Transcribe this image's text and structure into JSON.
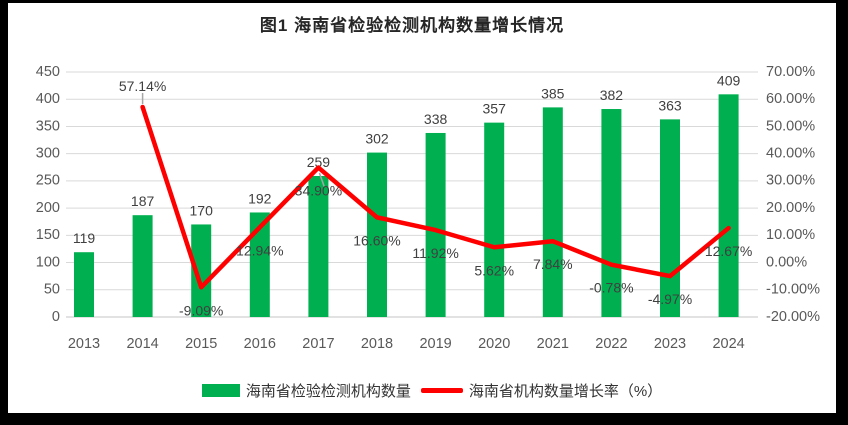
{
  "title": "图1 海南省检验检测机构数量增长情况",
  "colors": {
    "bar": "#00B050",
    "line": "#FF0000",
    "grid": "#D9D9D9",
    "baseline": "#C6C6C6",
    "axis_text": "#595959",
    "label_text": "#404040",
    "title_text": "#262626",
    "leader": "#A6A6A6",
    "background": "#FFFFFF",
    "frame": "#000000"
  },
  "legend": {
    "bar_label": "海南省检验检测机构数量",
    "line_label": "海南省机构数量增长率（%）"
  },
  "chart_data": {
    "type": "bar",
    "subtype": "combo bar+line, dual axis",
    "title": "图1 海南省检验检测机构数量增长情况",
    "categories": [
      "2013",
      "2014",
      "2015",
      "2016",
      "2017",
      "2018",
      "2019",
      "2020",
      "2021",
      "2022",
      "2023",
      "2024"
    ],
    "series": [
      {
        "name": "海南省检验检测机构数量",
        "type": "bar",
        "axis": "left",
        "color": "#00B050",
        "values": [
          119,
          187,
          170,
          192,
          259,
          302,
          338,
          357,
          385,
          382,
          363,
          409
        ],
        "labels": [
          "119",
          "187",
          "170",
          "192",
          "259",
          "302",
          "338",
          "357",
          "385",
          "382",
          "363",
          "409"
        ]
      },
      {
        "name": "海南省机构数量增长率（%）",
        "type": "line",
        "axis": "right",
        "color": "#FF0000",
        "values": [
          null,
          57.14,
          -9.09,
          12.94,
          34.9,
          16.6,
          11.92,
          5.62,
          7.84,
          -0.78,
          -4.97,
          12.67
        ],
        "labels": [
          null,
          "57.14%",
          "-9.09%",
          "12.94%",
          "34.90%",
          "16.60%",
          "11.92%",
          "5.62%",
          "7.84%",
          "-0.78%",
          "-4.97%",
          "12.67%"
        ]
      }
    ],
    "left_axis": {
      "min": 0,
      "max": 450,
      "step": 50,
      "ticks": [
        "0",
        "50",
        "100",
        "150",
        "200",
        "250",
        "300",
        "350",
        "400",
        "450"
      ]
    },
    "right_axis": {
      "min": -20,
      "max": 70,
      "step": 10,
      "ticks": [
        "-20.00%",
        "-10.00%",
        "0.00%",
        "10.00%",
        "20.00%",
        "30.00%",
        "40.00%",
        "50.00%",
        "60.00%",
        "70.00%"
      ]
    },
    "xlabel": "",
    "ylabel": "",
    "grid": true,
    "legend_position": "bottom"
  }
}
